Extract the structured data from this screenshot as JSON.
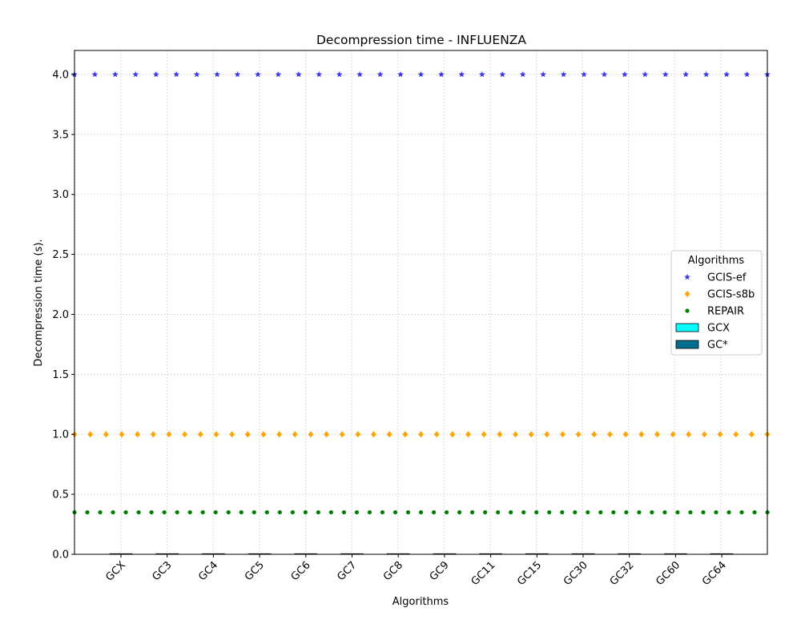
{
  "chart_data": {
    "type": "scatter",
    "title": "Decompression time -  INFLUENZA",
    "xlabel": "Algorithms",
    "ylabel": "Decompression time (s).",
    "ylim": [
      0,
      4.2
    ],
    "yticks": [
      "0.0",
      "0.5",
      "1.0",
      "1.5",
      "2.0",
      "2.5",
      "3.0",
      "3.5",
      "4.0"
    ],
    "categories": [
      "GCX",
      "GC3",
      "GC4",
      "GC5",
      "GC6",
      "GC7",
      "GC8",
      "GC9",
      "GC11",
      "GC15",
      "GC30",
      "GC32",
      "GC60",
      "GC64"
    ],
    "grid": true,
    "legend": {
      "title": "Algorithms",
      "placement": "center-right",
      "entries": [
        "GCIS-ef",
        "GCIS-s8b",
        "REPAIR",
        "GCX",
        "GC*"
      ]
    },
    "series": [
      {
        "name": "GCIS-ef",
        "marker": "star",
        "color": "#3a3af0",
        "value": 4.0
      },
      {
        "name": "GCIS-s8b",
        "marker": "diamond",
        "color": "#ffa500",
        "value": 1.0
      },
      {
        "name": "REPAIR",
        "marker": "circle",
        "color": "#008000",
        "value": 0.35
      }
    ],
    "bars": [
      {
        "name": "GCX",
        "color": "#00ffff",
        "values": [
          0,
          0,
          0,
          0,
          0,
          0,
          0,
          0,
          0,
          0,
          0,
          0,
          0,
          0
        ]
      },
      {
        "name": "GC*",
        "color": "#006e8c",
        "values": [
          0,
          0,
          0,
          0,
          0,
          0,
          0,
          0,
          0,
          0,
          0,
          0,
          0,
          0
        ]
      }
    ]
  }
}
